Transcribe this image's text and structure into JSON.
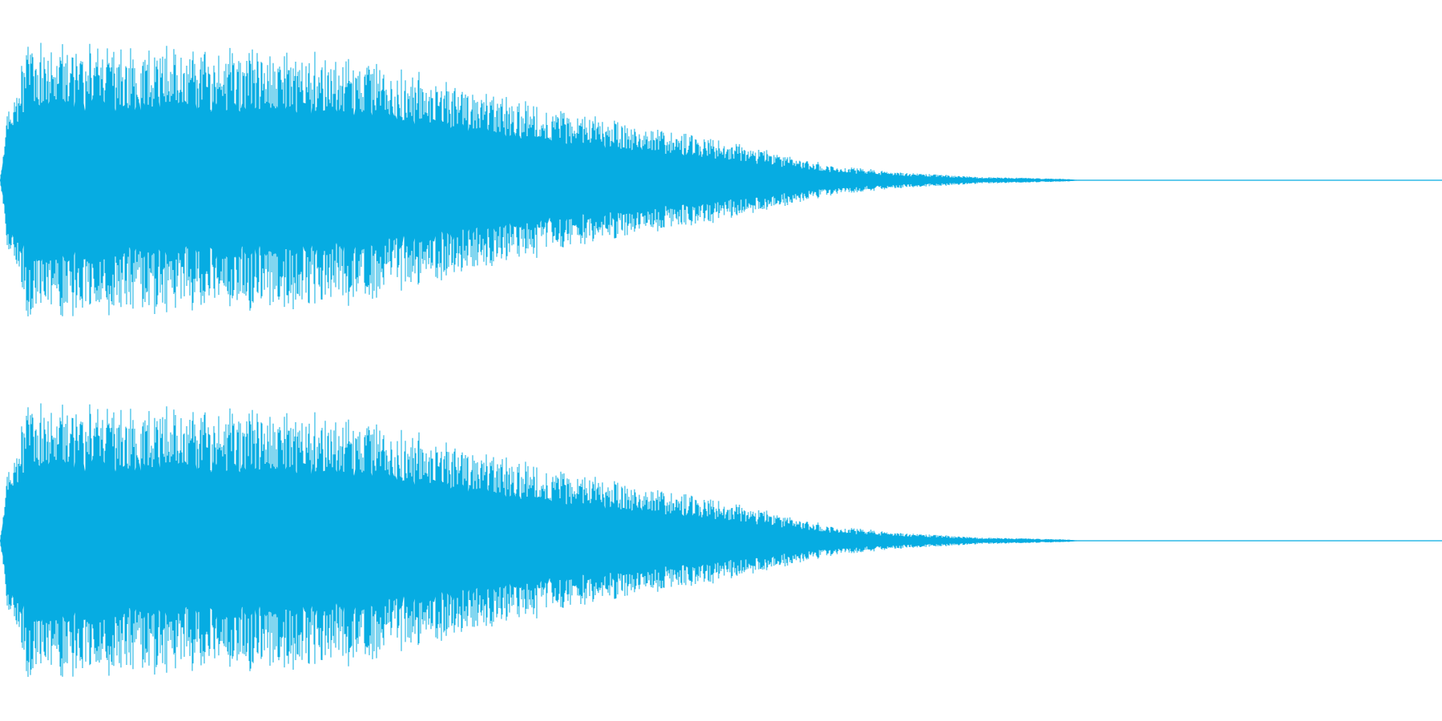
{
  "waveform": {
    "color": "#06ace2",
    "background": "#ffffff",
    "channels": [
      {
        "id": "left",
        "peak_amplitude": 1.0,
        "decay_end_fraction": 0.75
      },
      {
        "id": "right",
        "peak_amplitude": 1.0,
        "decay_end_fraction": 0.75
      }
    ],
    "envelope": [
      [
        0.0,
        0.0
      ],
      [
        0.005,
        0.55
      ],
      [
        0.02,
        1.0
      ],
      [
        0.08,
        0.97
      ],
      [
        0.2,
        0.93
      ],
      [
        0.25,
        0.88
      ],
      [
        0.3,
        0.74
      ],
      [
        0.36,
        0.57
      ],
      [
        0.42,
        0.44
      ],
      [
        0.48,
        0.33
      ],
      [
        0.53,
        0.22
      ],
      [
        0.57,
        0.12
      ],
      [
        0.62,
        0.06
      ],
      [
        0.68,
        0.025
      ],
      [
        0.74,
        0.01
      ],
      [
        0.75,
        0.0
      ]
    ]
  }
}
